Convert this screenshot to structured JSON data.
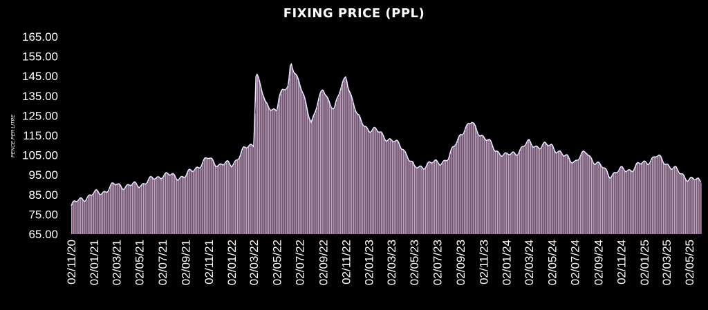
{
  "chart_data": {
    "type": "area",
    "title": "FIXING PRICE (PPL)",
    "xlabel": "",
    "ylabel": "PENCE PER LITRE",
    "ylim": [
      65,
      165
    ],
    "y_ticks": [
      "65.00",
      "75.00",
      "85.00",
      "95.00",
      "105.00",
      "115.00",
      "125.00",
      "135.00",
      "145.00",
      "155.00",
      "165.00"
    ],
    "x_tick_labels": [
      "02/11/20",
      "02/01/21",
      "02/03/21",
      "02/05/21",
      "02/07/21",
      "02/09/21",
      "02/11/21",
      "02/01/22",
      "02/03/22",
      "02/05/22",
      "02/07/22",
      "02/09/22",
      "02/11/22",
      "02/01/23",
      "02/03/23",
      "02/05/23",
      "02/07/23",
      "02/09/23",
      "02/11/23",
      "02/01/24",
      "02/03/24",
      "02/05/24",
      "02/07/24",
      "02/09/24",
      "02/11/24",
      "02/01/25",
      "02/03/25",
      "02/05/25"
    ],
    "grid": false,
    "colors": {
      "background": "#000000",
      "fill": "#c7a2c6",
      "line": "#e8e4ff",
      "text": "#ffffff"
    },
    "series": [
      {
        "x": [
          "02/11/20",
          "02/12/20",
          "02/01/21",
          "02/02/21",
          "02/03/21",
          "02/04/21",
          "02/05/21",
          "02/06/21",
          "02/07/21",
          "02/08/21",
          "02/09/21",
          "02/10/21",
          "02/11/21",
          "02/12/21",
          "02/01/22",
          "02/02/22",
          "02/03/22",
          "02/03/22",
          "02/04/22",
          "02/05/22",
          "02/05/22",
          "02/06/22",
          "02/06/22",
          "02/07/22",
          "02/08/22",
          "02/09/22",
          "02/10/22",
          "02/11/22",
          "02/11/22",
          "02/12/22",
          "02/01/23",
          "02/02/23",
          "02/03/23",
          "02/04/23",
          "02/05/23",
          "02/06/23",
          "02/07/23",
          "02/08/23",
          "02/09/23",
          "02/10/23",
          "02/11/23",
          "02/12/23",
          "02/01/24",
          "02/02/24",
          "02/03/24",
          "02/04/24",
          "02/05/24",
          "02/06/24",
          "02/07/24",
          "02/08/24",
          "02/09/24",
          "02/10/24",
          "02/11/24",
          "02/12/24",
          "02/01/25",
          "02/02/25",
          "02/03/25",
          "02/04/25",
          "02/05/25",
          "02/06/25"
        ],
        "values": [
          79,
          83,
          85,
          87,
          90,
          89,
          90,
          92,
          95,
          94,
          94,
          99,
          103,
          100,
          100,
          107,
          111,
          148,
          130,
          128,
          134,
          140,
          153,
          140,
          122,
          138,
          128,
          146,
          140,
          124,
          118,
          116,
          112,
          109,
          98,
          100,
          101,
          103,
          116,
          121,
          114,
          108,
          104,
          107,
          111,
          109,
          110,
          104,
          102,
          106,
          100,
          95,
          97,
          98,
          101,
          104,
          101,
          96,
          93,
          91
        ]
      }
    ]
  }
}
